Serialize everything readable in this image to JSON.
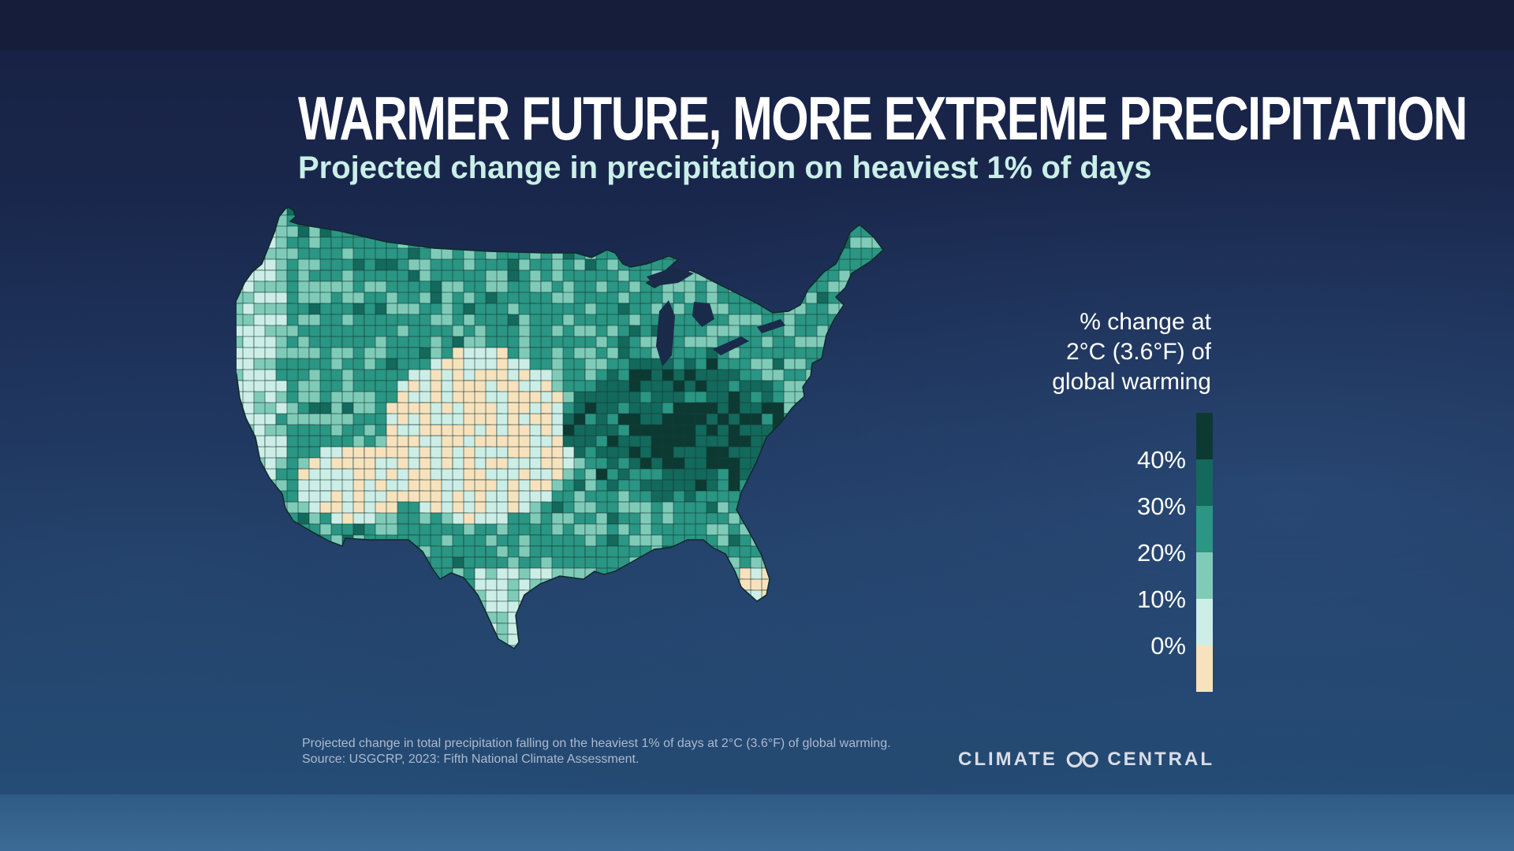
{
  "header": {
    "title": "Warmer Future, More Extreme Precipitation",
    "subtitle": "Projected change in precipitation on heaviest 1% of days"
  },
  "legend": {
    "title_lines": [
      "% change at",
      "2°C (3.6°F) of",
      "global warming"
    ],
    "classes": [
      {
        "color": "#0c3a33",
        "from": 40,
        "to": 50
      },
      {
        "color": "#13695b",
        "from": 30,
        "to": 40
      },
      {
        "color": "#2a9683",
        "from": 20,
        "to": 30
      },
      {
        "color": "#7fcbb8",
        "from": 10,
        "to": 20
      },
      {
        "color": "#cdeee6",
        "from": 0,
        "to": 10
      },
      {
        "color": "#f7e2bd",
        "from": -10,
        "to": 0
      }
    ],
    "tick_labels": [
      "40%",
      "30%",
      "20%",
      "10%",
      "0%"
    ]
  },
  "map": {
    "region": "Contiguous United States counties",
    "water_color": "#1a2b4a",
    "border_color": "#173a38"
  },
  "footer": {
    "note": "Projected change in total precipitation falling on the heaviest 1% of days at 2°C (3.6°F) of global warming.",
    "source": "Source: USGCRP, 2023: Fifth National Climate Assessment."
  },
  "logo": {
    "left_word": "CLIMATE",
    "right_word": "CENTRAL",
    "mark": "infinity-logo-icon"
  }
}
